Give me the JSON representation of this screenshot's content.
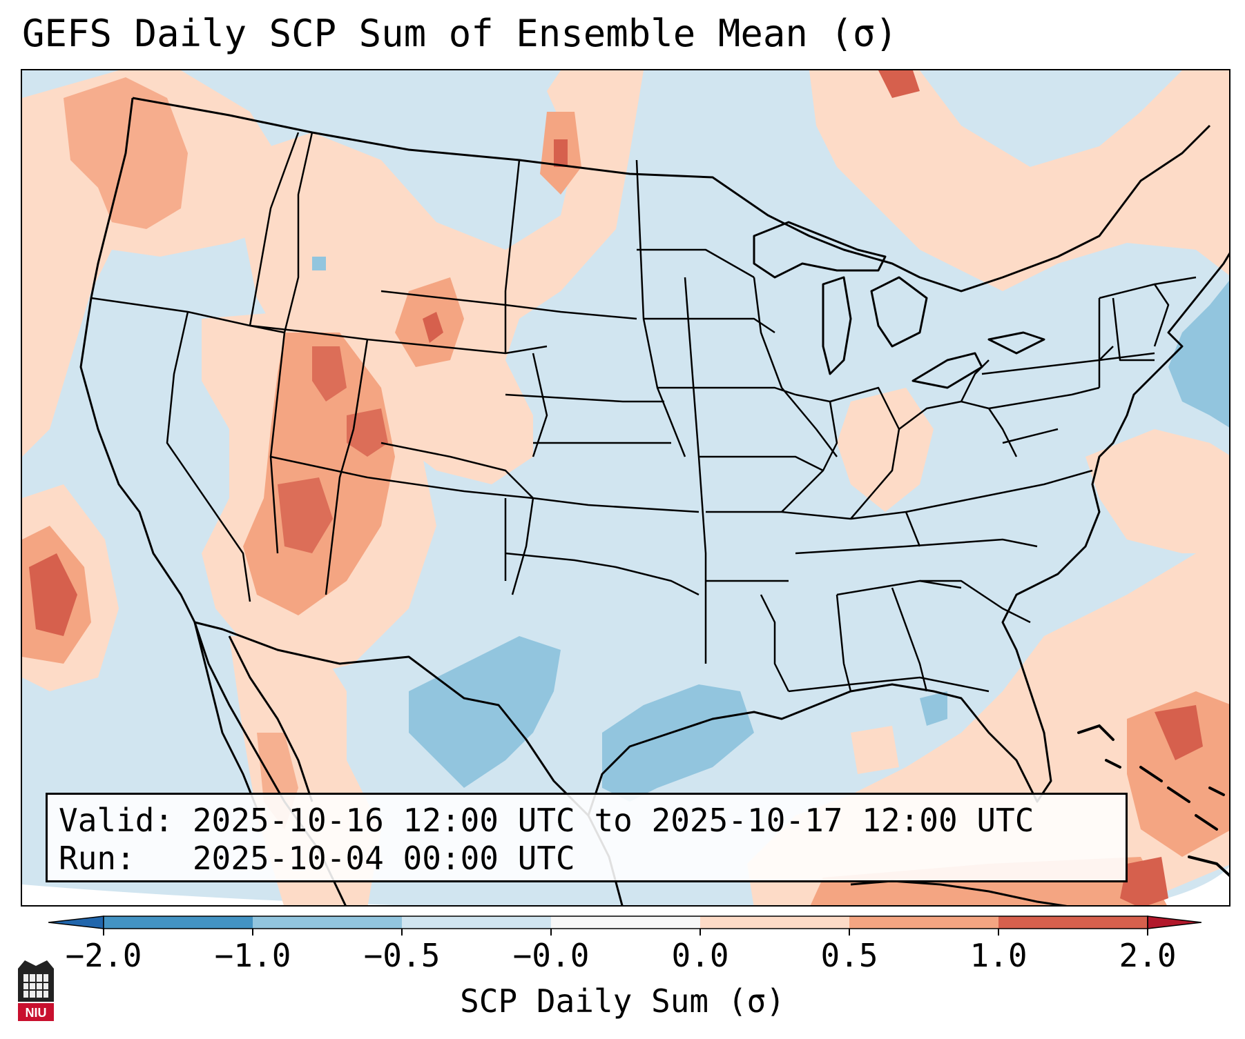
{
  "title": "GEFS Daily SCP Sum of Ensemble Mean (σ)",
  "info": {
    "valid": "Valid: 2025-10-16 12:00 UTC to 2025-10-17 12:00 UTC",
    "run": "Run:   2025-10-04 00:00 UTC"
  },
  "colorbar": {
    "label": "SCP Daily Sum (σ)",
    "tick_labels": [
      "−2.0",
      "−1.0",
      "−0.5",
      "−0.0",
      "0.0",
      "0.5",
      "1.0",
      "2.0"
    ],
    "bins": [
      {
        "from": -2.0,
        "to": -1.0,
        "color": "#4393c3"
      },
      {
        "from": -1.0,
        "to": -0.5,
        "color": "#92c5de"
      },
      {
        "from": -0.5,
        "to": -0.0,
        "color": "#d1e5f0"
      },
      {
        "from": -0.0,
        "to": 0.0,
        "color": "#f7f7f7"
      },
      {
        "from": 0.0,
        "to": 0.5,
        "color": "#fddbc7"
      },
      {
        "from": 0.5,
        "to": 1.0,
        "color": "#f4a582"
      },
      {
        "from": 1.0,
        "to": 2.0,
        "color": "#d6604d"
      }
    ],
    "under_color": "#2166ac",
    "over_color": "#b2182b"
  },
  "logo": {
    "text": "NIU"
  },
  "colors": {
    "background_neutral": "#d1e5f0",
    "positive_low": "#fddbc7",
    "positive_mid": "#f4a582",
    "positive_high": "#d6604d",
    "positive_extreme": "#b2182b",
    "negative_mid": "#92c5de"
  }
}
